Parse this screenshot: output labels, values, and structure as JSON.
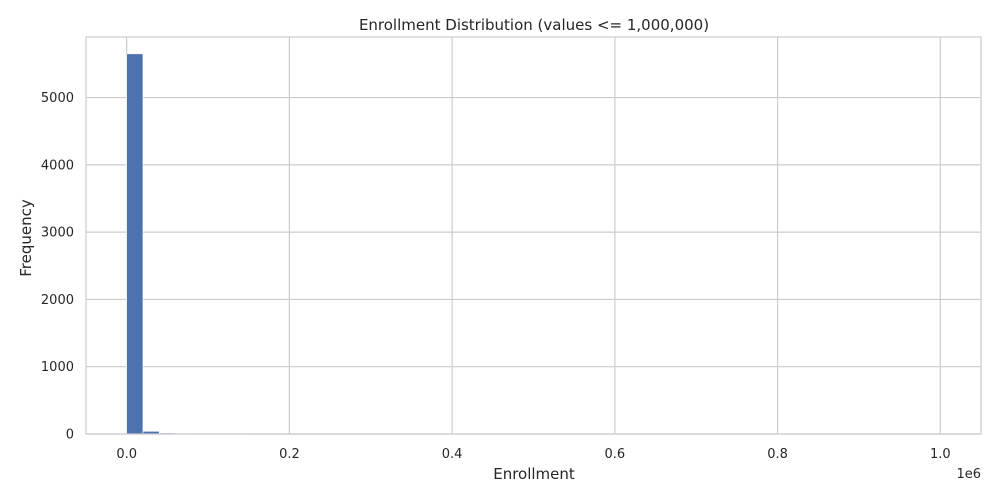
{
  "chart_data": {
    "type": "bar",
    "title": "Enrollment Distribution (values <= 1,000,000)",
    "xlabel": "Enrollment",
    "ylabel": "Frequency",
    "x_offset_label": "1e6",
    "x_tick_values": [
      0.0,
      0.2,
      0.4,
      0.6,
      0.8,
      1.0
    ],
    "x_tick_labels": [
      "0.0",
      "0.2",
      "0.4",
      "0.6",
      "0.8",
      "1.0"
    ],
    "y_tick_values": [
      0,
      1000,
      2000,
      3000,
      4000,
      5000
    ],
    "y_tick_labels": [
      "0",
      "1000",
      "2000",
      "3000",
      "4000",
      "5000"
    ],
    "xlim": [
      -0.05,
      1.05
    ],
    "ylim": [
      0,
      5900
    ],
    "grid": true,
    "bin_edges": [
      0.0,
      0.02,
      0.04,
      0.06,
      0.08,
      0.1,
      0.12,
      0.14,
      0.16,
      0.18,
      0.2,
      0.22,
      0.24,
      0.26,
      0.28,
      0.3,
      0.32,
      0.34,
      0.36,
      0.38,
      0.4,
      0.42,
      0.44,
      0.46,
      0.48,
      0.5,
      0.52,
      0.54,
      0.56,
      0.58,
      0.6,
      0.62,
      0.64,
      0.66,
      0.68,
      0.7,
      0.72,
      0.74,
      0.76,
      0.78,
      0.8,
      0.82,
      0.84,
      0.86,
      0.88,
      0.9,
      0.92,
      0.94,
      0.96,
      0.98,
      1.0
    ],
    "values": [
      5650,
      40,
      15,
      8,
      6,
      5,
      4,
      3,
      3,
      2,
      2,
      2,
      2,
      1,
      1,
      1,
      1,
      1,
      1,
      1,
      1,
      1,
      1,
      1,
      1,
      1,
      1,
      1,
      1,
      1,
      1,
      1,
      1,
      1,
      1,
      1,
      1,
      1,
      1,
      1,
      1,
      1,
      1,
      1,
      1,
      1,
      1,
      1,
      1,
      1
    ],
    "bar_color": "#4c72b0",
    "grid_color": "#cccccc",
    "text_color": "#262626"
  }
}
